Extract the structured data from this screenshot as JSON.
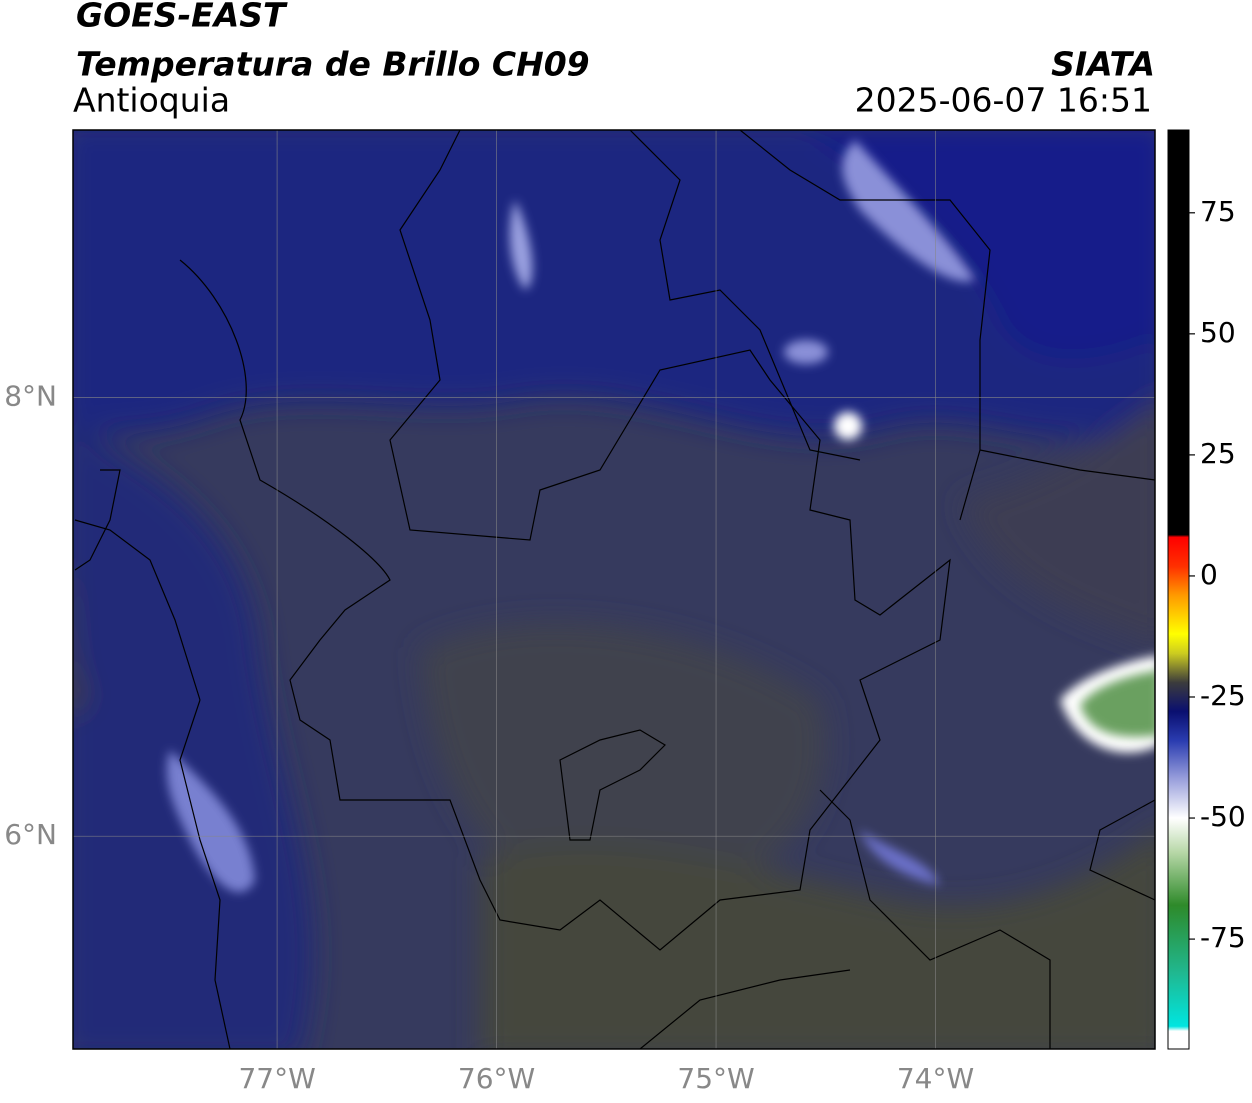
{
  "header": {
    "satellite": "GOES-EAST",
    "product": "Temperatura de Brillo CH09",
    "region": "Antioquia",
    "source": "SIATA",
    "datetime": "2025-06-07 16:51"
  },
  "map": {
    "xlim": [
      -77.93,
      -73.0
    ],
    "ylim": [
      5.03,
      9.22
    ],
    "xticks": [
      {
        "value": -77,
        "label": "77°W"
      },
      {
        "value": -76,
        "label": "76°W"
      },
      {
        "value": -75,
        "label": "75°W"
      },
      {
        "value": -74,
        "label": "74°W"
      }
    ],
    "yticks": [
      {
        "value": 6,
        "label": "6°N"
      },
      {
        "value": 8,
        "label": "8°N"
      }
    ]
  },
  "colorbar": {
    "lim": [
      -97.7,
      92.1
    ],
    "ticks": [
      -75,
      -50,
      -25,
      0,
      25,
      50,
      75
    ],
    "stops": [
      {
        "value": -97.7,
        "color": "#ffffff"
      },
      {
        "value": -94,
        "color": "#ffffff"
      },
      {
        "value": -93,
        "color": "#00e5e0"
      },
      {
        "value": -82,
        "color": "#20b890"
      },
      {
        "value": -68,
        "color": "#2e8a2a"
      },
      {
        "value": -57,
        "color": "#b8d8a8"
      },
      {
        "value": -50,
        "color": "#ffffff"
      },
      {
        "value": -42,
        "color": "#9aa0dc"
      },
      {
        "value": -34,
        "color": "#2a3cb0"
      },
      {
        "value": -28,
        "color": "#0a0f70"
      },
      {
        "value": -22,
        "color": "#3c3c3c"
      },
      {
        "value": -16,
        "color": "#cccc20"
      },
      {
        "value": -12,
        "color": "#ffff00"
      },
      {
        "value": -4,
        "color": "#ff9a00"
      },
      {
        "value": 2,
        "color": "#ff3000"
      },
      {
        "value": 8,
        "color": "#ff0000"
      },
      {
        "value": 8.5,
        "color": "#000000"
      },
      {
        "value": 92.1,
        "color": "#000000"
      }
    ]
  }
}
